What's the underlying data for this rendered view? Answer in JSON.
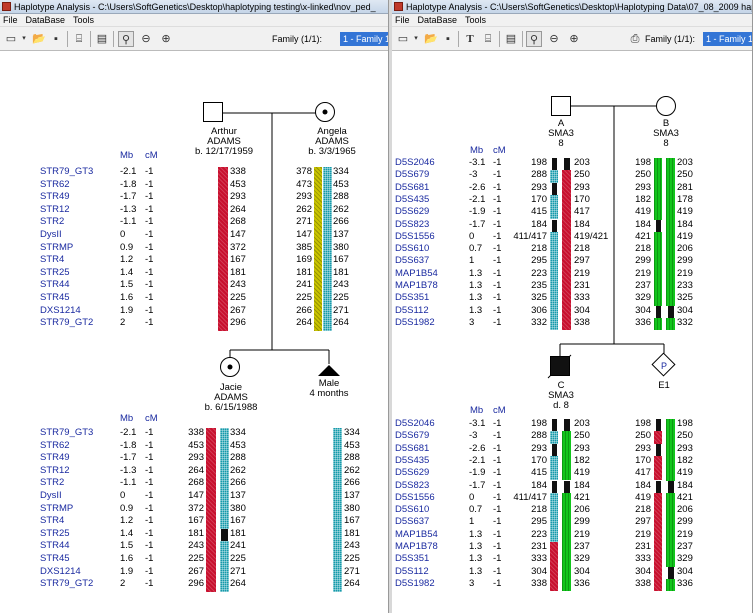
{
  "window1": {
    "title": "Haplotype Analysis - C:\\Users\\SoftGenetics\\Desktop\\haplotyping testing\\x-linked\\nov_ped_",
    "menu": [
      "File",
      "DataBase",
      "Tools"
    ],
    "family_label": "Family (1/1):",
    "family_selected": "1 - Family 1 -",
    "father": {
      "name": "Arthur",
      "surname": "ADAMS",
      "birth": "b. 12/17/1959"
    },
    "mother": {
      "name": "Angela",
      "surname": "ADAMS",
      "birth": "b. 3/3/1965"
    },
    "child1": {
      "name": "Jacie",
      "surname": "ADAMS",
      "birth": "b. 6/15/1988"
    },
    "child2": {
      "name": "Male",
      "age": "4 months"
    },
    "col_mb": "Mb",
    "col_cm": "cM",
    "markers": [
      {
        "name": "STR79_GT3",
        "mb": "-2.1",
        "cm": "-1",
        "father": "338",
        "mother": [
          "378",
          "334"
        ],
        "c1": [
          "338",
          "334"
        ],
        "c2": "334"
      },
      {
        "name": "STR62",
        "mb": "-1.8",
        "cm": "-1",
        "father": "453",
        "mother": [
          "473",
          "453"
        ],
        "c1": [
          "453",
          "453"
        ],
        "c2": "453"
      },
      {
        "name": "STR49",
        "mb": "-1.7",
        "cm": "-1",
        "father": "293",
        "mother": [
          "293",
          "288"
        ],
        "c1": [
          "293",
          "288"
        ],
        "c2": "288"
      },
      {
        "name": "STR12",
        "mb": "-1.3",
        "cm": "-1",
        "father": "264",
        "mother": [
          "262",
          "262"
        ],
        "c1": [
          "264",
          "262"
        ],
        "c2": "262"
      },
      {
        "name": "STR2",
        "mb": "-1.1",
        "cm": "-1",
        "father": "268",
        "mother": [
          "271",
          "266"
        ],
        "c1": [
          "268",
          "266"
        ],
        "c2": "266"
      },
      {
        "name": "DysII",
        "mb": "0",
        "cm": "-1",
        "father": "147",
        "mother": [
          "147",
          "137"
        ],
        "c1": [
          "147",
          "137"
        ],
        "c2": "137"
      },
      {
        "name": "STRMP",
        "mb": "0.9",
        "cm": "-1",
        "father": "372",
        "mother": [
          "385",
          "380"
        ],
        "c1": [
          "372",
          "380"
        ],
        "c2": "380"
      },
      {
        "name": "STR4",
        "mb": "1.2",
        "cm": "-1",
        "father": "167",
        "mother": [
          "169",
          "167"
        ],
        "c1": [
          "167",
          "167"
        ],
        "c2": "167"
      },
      {
        "name": "STR25",
        "mb": "1.4",
        "cm": "-1",
        "father": "181",
        "mother": [
          "181",
          "181"
        ],
        "c1": [
          "181",
          "181"
        ],
        "c2": "181"
      },
      {
        "name": "STR44",
        "mb": "1.5",
        "cm": "-1",
        "father": "243",
        "mother": [
          "241",
          "243"
        ],
        "c1": [
          "243",
          "241"
        ],
        "c2": "243"
      },
      {
        "name": "STR45",
        "mb": "1.6",
        "cm": "-1",
        "father": "225",
        "mother": [
          "225",
          "225"
        ],
        "c1": [
          "225",
          "225"
        ],
        "c2": "225"
      },
      {
        "name": "DXS1214",
        "mb": "1.9",
        "cm": "-1",
        "father": "267",
        "mother": [
          "266",
          "271"
        ],
        "c1": [
          "267",
          "271"
        ],
        "c2": "271"
      },
      {
        "name": "STR79_GT2",
        "mb": "2",
        "cm": "-1",
        "father": "296",
        "mother": [
          "264",
          "264"
        ],
        "c1": [
          "296",
          "264"
        ],
        "c2": "264"
      }
    ],
    "colors": {
      "red": "#c8102e",
      "cyan": "#149aaa",
      "yellow": "#c9c400",
      "black": "#111111"
    }
  },
  "window2": {
    "title": "Haplotype Analysis - C:\\Users\\SoftGenetics\\Desktop\\Haplotyping Data\\07_08_2009 haplotyp",
    "menu": [
      "File",
      "DataBase",
      "Tools"
    ],
    "family_label": "Family (1/1):",
    "family_selected": "1 - Family 1 -",
    "father": {
      "id": "A",
      "line2": "SMA3",
      "line3": "8"
    },
    "mother": {
      "id": "B",
      "line2": "SMA3",
      "line3": "8"
    },
    "child1": {
      "id": "C",
      "line2": "SMA3",
      "line3": "d. 8"
    },
    "child2": {
      "id": "E1",
      "mark": "P"
    },
    "col_mb": "Mb",
    "col_cm": "cM",
    "markers": [
      {
        "name": "D5S2046",
        "mb": "-3.1",
        "cm": "-1",
        "a": [
          "198",
          "203"
        ],
        "b": [
          "198",
          "203"
        ],
        "c": [
          "198",
          "203"
        ],
        "e": [
          "198",
          "198"
        ]
      },
      {
        "name": "D5S679",
        "mb": "-3",
        "cm": "-1",
        "a": [
          "288",
          "250"
        ],
        "b": [
          "250",
          "250"
        ],
        "c": [
          "288",
          "250"
        ],
        "e": [
          "250",
          "250"
        ]
      },
      {
        "name": "D5S681",
        "mb": "-2.6",
        "cm": "-1",
        "a": [
          "293",
          "293"
        ],
        "b": [
          "293",
          "281"
        ],
        "c": [
          "293",
          "293"
        ],
        "e": [
          "293",
          "293"
        ]
      },
      {
        "name": "D5S435",
        "mb": "-2.1",
        "cm": "-1",
        "a": [
          "170",
          "170"
        ],
        "b": [
          "182",
          "178"
        ],
        "c": [
          "170",
          "182"
        ],
        "e": [
          "170",
          "182"
        ]
      },
      {
        "name": "D5S629",
        "mb": "-1.9",
        "cm": "-1",
        "a": [
          "415",
          "417"
        ],
        "b": [
          "419",
          "419"
        ],
        "c": [
          "415",
          "419"
        ],
        "e": [
          "417",
          "419"
        ]
      },
      {
        "name": "D5S823",
        "mb": "-1.7",
        "cm": "-1",
        "a": [
          "184",
          "184"
        ],
        "b": [
          "184",
          "184"
        ],
        "c": [
          "184",
          "184"
        ],
        "e": [
          "184",
          "184"
        ]
      },
      {
        "name": "D5S1556",
        "mb": "0",
        "cm": "-1",
        "a": [
          "411/417",
          "419/421"
        ],
        "b": [
          "421",
          "419"
        ],
        "c": [
          "411/417",
          "421"
        ],
        "e": [
          "419",
          "421"
        ]
      },
      {
        "name": "D5S610",
        "mb": "0.7",
        "cm": "-1",
        "a": [
          "218",
          "218"
        ],
        "b": [
          "218",
          "206"
        ],
        "c": [
          "218",
          "206"
        ],
        "e": [
          "218",
          "206"
        ]
      },
      {
        "name": "D5S637",
        "mb": "1",
        "cm": "-1",
        "a": [
          "295",
          "297"
        ],
        "b": [
          "299",
          "299"
        ],
        "c": [
          "295",
          "299"
        ],
        "e": [
          "297",
          "299"
        ]
      },
      {
        "name": "MAP1B54",
        "mb": "1.3",
        "cm": "-1",
        "a": [
          "223",
          "219"
        ],
        "b": [
          "219",
          "219"
        ],
        "c": [
          "223",
          "219"
        ],
        "e": [
          "219",
          "219"
        ]
      },
      {
        "name": "MAP1B78",
        "mb": "1.3",
        "cm": "-1",
        "a": [
          "235",
          "231"
        ],
        "b": [
          "237",
          "233"
        ],
        "c": [
          "231",
          "237"
        ],
        "e": [
          "231",
          "237"
        ]
      },
      {
        "name": "D5S351",
        "mb": "1.3",
        "cm": "-1",
        "a": [
          "325",
          "333"
        ],
        "b": [
          "329",
          "325"
        ],
        "c": [
          "333",
          "329"
        ],
        "e": [
          "333",
          "329"
        ]
      },
      {
        "name": "D5S112",
        "mb": "1.3",
        "cm": "-1",
        "a": [
          "306",
          "304"
        ],
        "b": [
          "304",
          "304"
        ],
        "c": [
          "304",
          "304"
        ],
        "e": [
          "304",
          "304"
        ]
      },
      {
        "name": "D5S1982",
        "mb": "3",
        "cm": "-1",
        "a": [
          "332",
          "338"
        ],
        "b": [
          "336",
          "332"
        ],
        "c": [
          "338",
          "336"
        ],
        "e": [
          "338",
          "336"
        ]
      }
    ],
    "colors": {
      "red": "#c8102e",
      "cyan": "#149aaa",
      "green": "#12c51c",
      "black": "#111111"
    }
  }
}
